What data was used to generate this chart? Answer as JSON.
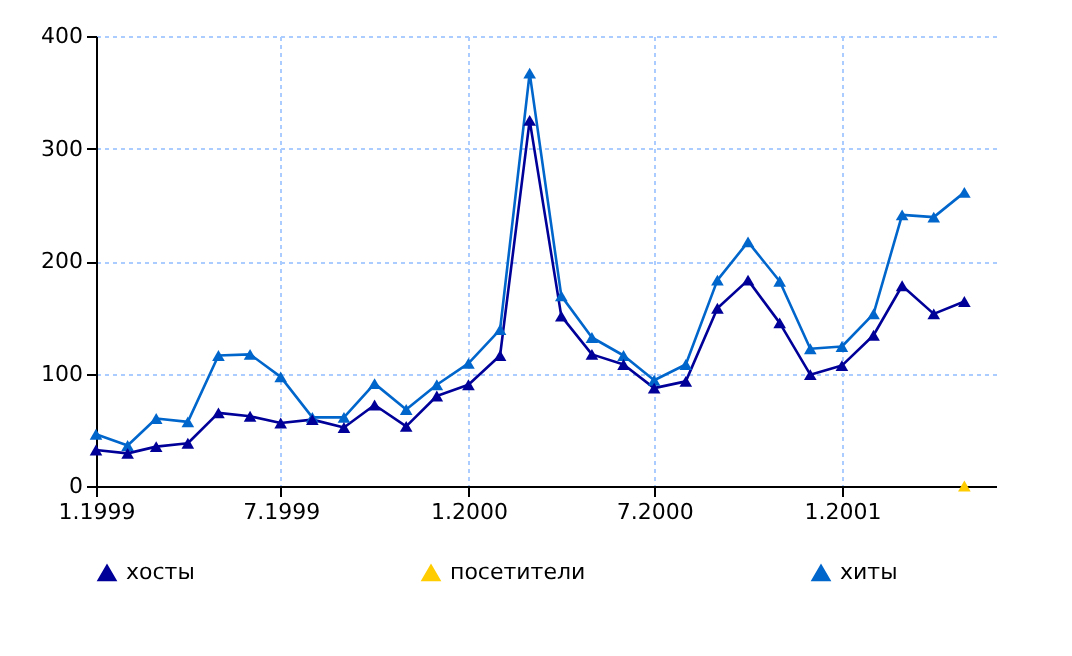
{
  "chart_data": {
    "type": "line",
    "x": [
      "1999-01",
      "1999-02",
      "1999-03",
      "1999-04",
      "1999-05",
      "1999-06",
      "1999-07",
      "1999-08",
      "1999-09",
      "1999-10",
      "1999-11",
      "1999-12",
      "2000-01",
      "2000-02",
      "2000-03",
      "2000-04",
      "2000-05",
      "2000-06",
      "2000-07",
      "2000-08",
      "2000-09",
      "2000-10",
      "2000-11",
      "2000-12",
      "2001-01",
      "2001-02",
      "2001-03",
      "2001-04",
      "2001-05"
    ],
    "series": [
      {
        "name": "хосты",
        "color": "#000099",
        "values": [
          32,
          29,
          35,
          38,
          65,
          62,
          56,
          59,
          52,
          72,
          53,
          80,
          90,
          116,
          325,
          151,
          117,
          108,
          87,
          93,
          158,
          183,
          145,
          99,
          107,
          134,
          178,
          153,
          164
        ]
      },
      {
        "name": "посетители",
        "color": "#ffcc00",
        "values": [
          null,
          null,
          null,
          null,
          null,
          null,
          null,
          null,
          null,
          null,
          null,
          null,
          null,
          null,
          null,
          null,
          null,
          null,
          null,
          null,
          null,
          null,
          null,
          null,
          null,
          null,
          null,
          null,
          0
        ]
      },
      {
        "name": "хиты",
        "color": "#0066cc",
        "values": [
          46,
          36,
          60,
          57,
          116,
          117,
          97,
          61,
          61,
          91,
          68,
          90,
          109,
          139,
          367,
          169,
          132,
          116,
          94,
          108,
          183,
          217,
          182,
          122,
          124,
          153,
          241,
          239,
          261
        ]
      }
    ],
    "xlim": [
      "1999-01",
      "2001-06"
    ],
    "xticks": [
      {
        "value": "1999-01",
        "label": "1.1999"
      },
      {
        "value": "1999-07",
        "label": "7.1999"
      },
      {
        "value": "2000-01",
        "label": "1.2000"
      },
      {
        "value": "2000-07",
        "label": "7.2000"
      },
      {
        "value": "2001-01",
        "label": "1.2001"
      }
    ],
    "ylim": [
      0,
      400
    ],
    "yticks": [
      0,
      100,
      200,
      300,
      400
    ],
    "grid": true,
    "legend": "bottom",
    "marker": "triangle",
    "line_style": "solid"
  }
}
